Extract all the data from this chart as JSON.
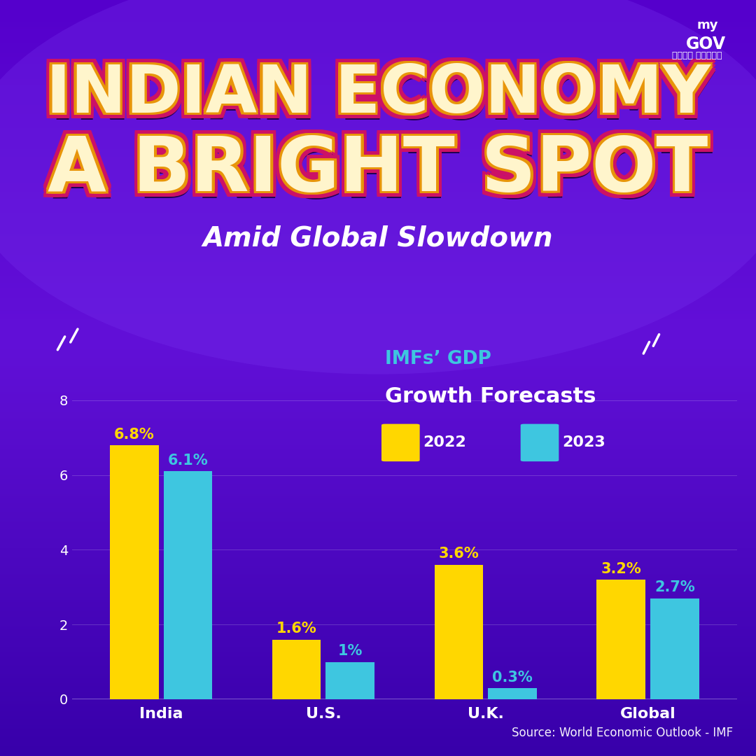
{
  "title_line1": "INDIAN ECONOMY",
  "title_line2": "A BRIGHT SPOT",
  "subtitle": "Amid Global Slowdown",
  "source": "Source: World Economic Outlook - IMF",
  "categories": [
    "India",
    "U.S.",
    "U.K.",
    "Global"
  ],
  "values_2022": [
    6.8,
    1.6,
    3.6,
    3.2
  ],
  "values_2023": [
    6.1,
    1.0,
    0.3,
    2.7
  ],
  "labels_2022": [
    "6.8%",
    "1.6%",
    "3.6%",
    "3.2%"
  ],
  "labels_2023": [
    "6.1%",
    "1%",
    "0.3%",
    "2.7%"
  ],
  "color_2022": "#FFD700",
  "color_2023": "#3EC6E0",
  "bg_color": "#5500CC",
  "yticks": [
    0,
    2,
    4,
    6,
    8
  ],
  "ylim": [
    0,
    9.0
  ],
  "bar_width": 0.3,
  "title_inner_color": "#FFF5CC",
  "title_outer_color": "#E8950A",
  "title_outline_color": "#CC1166",
  "subtitle_color": "#FFFFFF",
  "legend_title_cyan": "#3EC6E0",
  "legend_title_white": "#FFFFFF"
}
